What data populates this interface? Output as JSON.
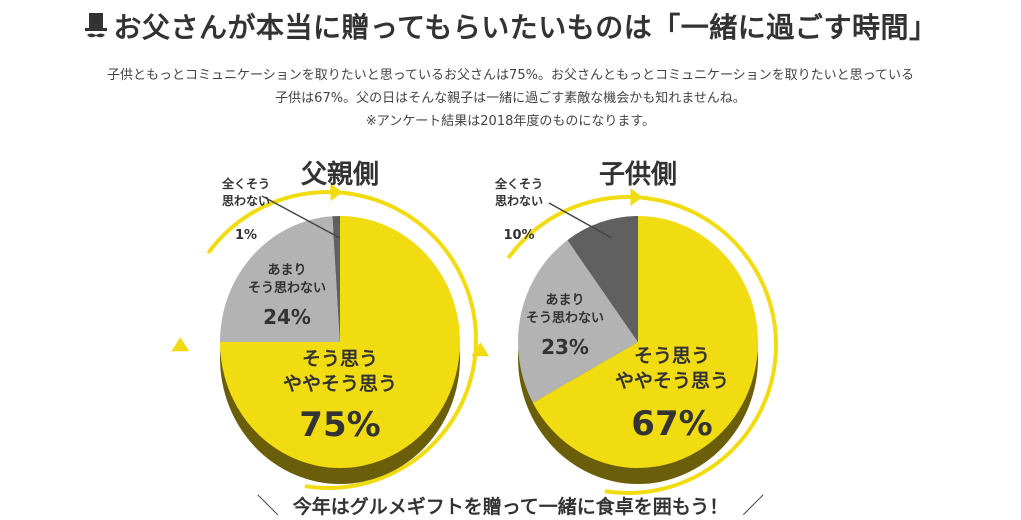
{
  "header": {
    "title": "お父さんが本当に贈ってもらいたいものは「一緒に過ごす時間」"
  },
  "description": {
    "line1": "子供ともっとコミュニケーションを取りたいと思っているお父さんは75%。お父さんともっとコミュニケーションを取りたいと思っている",
    "line2": "子供は67%。父の日はそんな親子は一緒に過ごす素敵な機会かも知れませんね。",
    "note": "※アンケート結果は2018年度のものになります。"
  },
  "chart_data": [
    {
      "type": "pie",
      "title": "父親側",
      "slices": [
        {
          "label_lines": [
            "そう思う",
            "ややそう思う"
          ],
          "value": 75,
          "value_label": "75%",
          "color": "#f1dc12"
        },
        {
          "label_lines": [
            "あまり",
            "そう思わない"
          ],
          "value": 24,
          "value_label": "24%",
          "color": "#b3b3b3"
        },
        {
          "label_lines": [
            "全くそう",
            "思わない"
          ],
          "value": 1,
          "value_label": "1%",
          "color": "#606060"
        }
      ]
    },
    {
      "type": "pie",
      "title": "子供側",
      "slices": [
        {
          "label_lines": [
            "そう思う",
            "ややそう思う"
          ],
          "value": 67,
          "value_label": "67%",
          "color": "#f1dc12"
        },
        {
          "label_lines": [
            "あまり",
            "そう思わない"
          ],
          "value": 23,
          "value_label": "23%",
          "color": "#b3b3b3"
        },
        {
          "label_lines": [
            "全くそう",
            "思わない"
          ],
          "value": 10,
          "value_label": "10%",
          "color": "#606060"
        }
      ]
    }
  ],
  "colors": {
    "accent_yellow": "#f1dc12",
    "shadow_yellow": "#6b5e0a",
    "text": "#333333"
  },
  "footer": {
    "slogan": "今年はグルメギフトを贈って一緒に食卓を囲もう！",
    "slash_left": "＼",
    "slash_right": "／"
  }
}
